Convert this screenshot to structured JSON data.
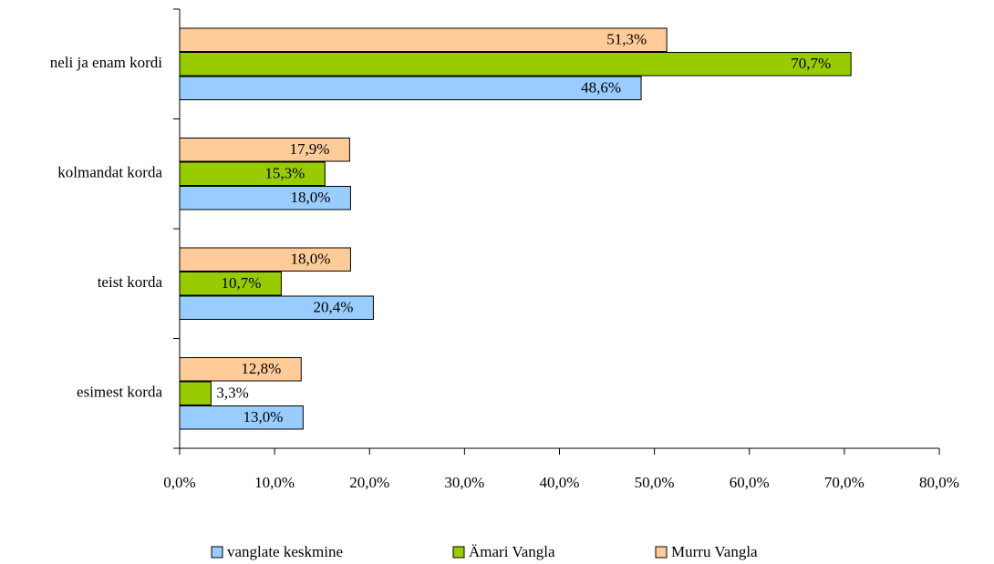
{
  "chart_data": {
    "type": "bar",
    "orientation": "horizontal",
    "categories": [
      "esimest korda",
      "teist korda",
      "kolmandat korda",
      "neli ja enam kordi"
    ],
    "series": [
      {
        "name": "vanglate keskmine",
        "color": "#99ccff",
        "values": [
          13.0,
          20.4,
          18.0,
          48.6
        ],
        "value_labels": [
          "13,0%",
          "20,4%",
          "18,0%",
          "48,6%"
        ]
      },
      {
        "name": "Ämari Vangla",
        "color": "#99cc00",
        "values": [
          3.3,
          10.7,
          15.3,
          70.7
        ],
        "value_labels": [
          "3,3%",
          "10,7%",
          "15,3%",
          "70,7%"
        ]
      },
      {
        "name": "Murru Vangla",
        "color": "#ffcc99",
        "values": [
          12.8,
          18.0,
          17.9,
          51.3
        ],
        "value_labels": [
          "12,8%",
          "18,0%",
          "17,9%",
          "51,3%"
        ]
      }
    ],
    "xlim": [
      0,
      80
    ],
    "xticks": [
      {
        "value": 0,
        "label": "0,0%"
      },
      {
        "value": 10,
        "label": "10,0%"
      },
      {
        "value": 20,
        "label": "20,0%"
      },
      {
        "value": 30,
        "label": "30,0%"
      },
      {
        "value": 40,
        "label": "40,0%"
      },
      {
        "value": 50,
        "label": "50,0%"
      },
      {
        "value": 60,
        "label": "60,0%"
      },
      {
        "value": 70,
        "label": "70,0%"
      },
      {
        "value": 80,
        "label": "80,0%"
      }
    ],
    "legend": "bottom"
  }
}
